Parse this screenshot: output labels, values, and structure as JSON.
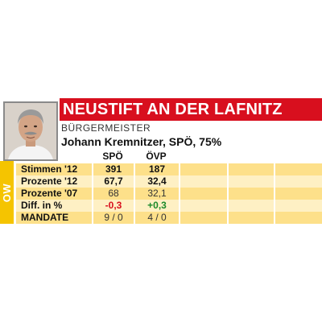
{
  "header": {
    "title": "NEUSTIFT AN DER LAFNITZ",
    "role": "BÜRGERMEISTER",
    "mayor": "Johann Kremnitzer, SPÖ, 75%"
  },
  "side_label": "OW",
  "table": {
    "columns": [
      "SPÖ",
      "ÖVP"
    ],
    "rows": [
      {
        "label": "Stimmen '12",
        "spo": "391",
        "ovp": "187"
      },
      {
        "label": "Prozente '12",
        "spo": "67,7",
        "ovp": "32,4"
      },
      {
        "label": "Prozente '07",
        "spo": "68",
        "ovp": "32,1"
      },
      {
        "label": "Diff. in %",
        "spo": "-0,3",
        "ovp": "+0,3"
      },
      {
        "label": "MANDATE",
        "spo": "9 / 0",
        "ovp": "4 / 0"
      }
    ]
  },
  "colors": {
    "title_bar": "#d80f1e",
    "side_label": "#f5c400",
    "row_dark": "#fde08a",
    "row_light": "#fef0c4",
    "negative": "#d80f1e",
    "positive": "#1a8a2a"
  }
}
